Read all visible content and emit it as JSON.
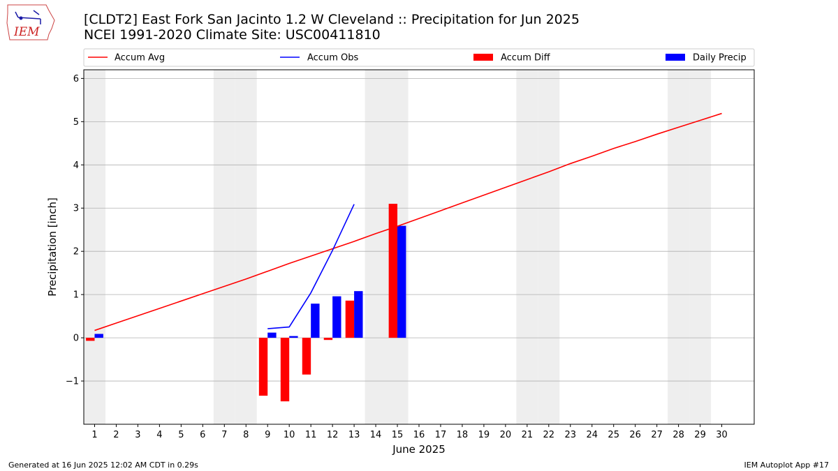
{
  "logo": {
    "text": "IEM"
  },
  "title_line1": "[CLDT2] East Fork San Jacinto 1.2 W Cleveland :: Precipitation for Jun 2025",
  "title_line2": "NCEI 1991-2020 Climate Site: USC00411810",
  "footer_left": "Generated at 16 Jun 2025 12:02 AM CDT in 0.29s",
  "footer_right": "IEM Autoplot App #17",
  "colors": {
    "avg": "#ff0000",
    "obs": "#0000ff",
    "diff": "#ff0000",
    "daily": "#0000ff",
    "weekend": "#eeeeee",
    "grid": "#b0b0b0"
  },
  "chart_data": {
    "type": "bar",
    "xlabel": "June 2025",
    "ylabel": "Precipitation [inch]",
    "xlim": [
      0.5,
      31.5
    ],
    "ylim": [
      -2.0,
      6.2
    ],
    "yticks": [
      -1,
      0,
      1,
      2,
      3,
      4,
      5,
      6
    ],
    "ytick_labels": [
      "−1",
      "0",
      "1",
      "2",
      "3",
      "4",
      "5",
      "6"
    ],
    "x": [
      1,
      2,
      3,
      4,
      5,
      6,
      7,
      8,
      9,
      10,
      11,
      12,
      13,
      14,
      15,
      16,
      17,
      18,
      19,
      20,
      21,
      22,
      23,
      24,
      25,
      26,
      27,
      28,
      29,
      30
    ],
    "xtick_labels": [
      "1",
      "2",
      "3",
      "4",
      "5",
      "6",
      "7",
      "8",
      "9",
      "10",
      "11",
      "12",
      "13",
      "14",
      "15",
      "16",
      "17",
      "18",
      "19",
      "20",
      "21",
      "22",
      "23",
      "24",
      "25",
      "26",
      "27",
      "28",
      "29",
      "30"
    ],
    "weekend_days": [
      1,
      7,
      8,
      14,
      15,
      21,
      22,
      28,
      29
    ],
    "grid": true,
    "legend_position": "top",
    "legend": [
      "Accum Avg",
      "Accum Obs",
      "Accum Diff",
      "Daily Precip"
    ],
    "series": [
      {
        "name": "Accum Avg",
        "kind": "line",
        "x": [
          1,
          2,
          3,
          4,
          5,
          6,
          7,
          8,
          9,
          10,
          11,
          12,
          13,
          14,
          15,
          16,
          17,
          18,
          19,
          20,
          21,
          22,
          23,
          24,
          25,
          26,
          27,
          28,
          29,
          30
        ],
        "values": [
          0.17,
          0.34,
          0.51,
          0.68,
          0.85,
          1.02,
          1.19,
          1.36,
          1.54,
          1.72,
          1.89,
          2.06,
          2.23,
          2.41,
          2.58,
          2.76,
          2.94,
          3.12,
          3.3,
          3.48,
          3.66,
          3.84,
          4.03,
          4.2,
          4.38,
          4.54,
          4.71,
          4.87,
          5.03,
          5.19
        ]
      },
      {
        "name": "Accum Obs",
        "kind": "line",
        "x": [
          9,
          10,
          11,
          12,
          13
        ],
        "values": [
          0.21,
          0.25,
          1.04,
          2.02,
          3.09
        ]
      },
      {
        "name": "Accum Diff",
        "kind": "bar",
        "offset": -0.2,
        "x": [
          1,
          9,
          10,
          11,
          12,
          13,
          15
        ],
        "values": [
          -0.07,
          -1.34,
          -1.47,
          -0.85,
          -0.05,
          0.86,
          3.1
        ]
      },
      {
        "name": "Daily Precip",
        "kind": "bar",
        "offset": 0.2,
        "x": [
          1,
          9,
          10,
          11,
          12,
          13,
          15
        ],
        "values": [
          0.09,
          0.12,
          0.04,
          0.79,
          0.96,
          1.08,
          2.59
        ]
      }
    ]
  }
}
